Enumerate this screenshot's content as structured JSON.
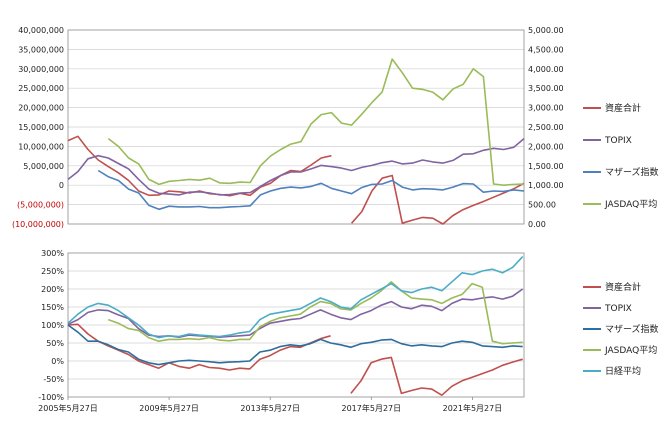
{
  "chart_data": [
    {
      "type": "line",
      "title": "",
      "xlabel": "",
      "ylabel": "",
      "x": [
        2005.41,
        2005.8,
        2006.2,
        2006.6,
        2007.0,
        2007.4,
        2007.8,
        2008.2,
        2008.6,
        2009.0,
        2009.4,
        2009.8,
        2010.2,
        2010.6,
        2011.0,
        2011.4,
        2011.8,
        2012.2,
        2012.6,
        2013.0,
        2013.4,
        2013.8,
        2014.2,
        2014.6,
        2015.0,
        2015.4,
        2015.8,
        2016.2,
        2016.6,
        2017.0,
        2017.4,
        2017.8,
        2018.2,
        2018.6,
        2019.0,
        2019.4,
        2019.8,
        2020.2,
        2020.6,
        2021.0,
        2021.4,
        2021.8,
        2022.2,
        2022.6,
        2023.0,
        2023.4
      ],
      "yaxis_left": {
        "ylim": [
          -10000000,
          40000000
        ],
        "ticks": [
          "(10,000,000)",
          "(5,000,000)",
          "0",
          "5,000,000",
          "10,000,000",
          "15,000,000",
          "20,000,000",
          "25,000,000",
          "30,000,000",
          "35,000,000",
          "40,000,000"
        ]
      },
      "yaxis_right": {
        "ylim": [
          0,
          5000
        ],
        "ticks": [
          "0.00",
          "500.00",
          "1,000.00",
          "1,500.00",
          "2,000.00",
          "2,500.00",
          "3,000.00",
          "3,500.00",
          "4,000.00",
          "4,500.00",
          "5,000.00"
        ]
      },
      "legend_position": "right",
      "series": [
        {
          "name": "資産合計",
          "axis": "left",
          "color": "#c0504d",
          "values": [
            11500000,
            12600000,
            9200000,
            6500000,
            4800000,
            3200000,
            1200000,
            -1500000,
            -2600000,
            -2500000,
            -1500000,
            -1700000,
            -2000000,
            -1500000,
            -2200000,
            -2400000,
            -2700000,
            -2100000,
            -2600000,
            -500000,
            500000,
            2500000,
            3800000,
            3500000,
            5200000,
            7000000,
            7600000,
            null,
            -9800000,
            -6800000,
            -1500000,
            1800000,
            2500000,
            -9800000,
            -9000000,
            -8300000,
            -8500000,
            -10000000,
            -7800000,
            -6300000,
            -5200000,
            -4200000,
            -3100000,
            -2000000,
            -900000,
            500000
          ]
        },
        {
          "name": "TOPIX",
          "axis": "left",
          "color": "#8064a2",
          "values": [
            1500000,
            3500000,
            6800000,
            7600000,
            7000000,
            5600000,
            4200000,
            1500000,
            -1000000,
            -2100000,
            -2300000,
            -2500000,
            -1800000,
            -1700000,
            -2000000,
            -2500000,
            -2400000,
            -2000000,
            -1900000,
            -300000,
            1200000,
            2500000,
            3400000,
            3400000,
            4200000,
            5100000,
            4800000,
            4400000,
            3800000,
            4600000,
            5100000,
            5800000,
            6200000,
            5500000,
            5700000,
            6500000,
            6000000,
            5700000,
            6400000,
            8000000,
            8100000,
            9000000,
            9500000,
            9200000,
            9800000,
            12000000
          ]
        },
        {
          "name": "マザーズ指数",
          "axis": "left",
          "color": "#4f81bd",
          "values": [
            null,
            null,
            null,
            3800000,
            2200000,
            1200000,
            -1000000,
            -2000000,
            -5200000,
            -6200000,
            -5400000,
            -5600000,
            -5600000,
            -5500000,
            -5800000,
            -5800000,
            -5600000,
            -5500000,
            -5300000,
            -2500000,
            -1500000,
            -800000,
            -500000,
            -700000,
            -300000,
            500000,
            -800000,
            -1500000,
            -2200000,
            -600000,
            200000,
            300000,
            1200000,
            -500000,
            -1200000,
            -900000,
            -1000000,
            -1200000,
            -500000,
            400000,
            300000,
            -1800000,
            -1500000,
            -1600000,
            -1200000,
            -1500000
          ]
        },
        {
          "name": "JASDAQ平均",
          "axis": "left",
          "color": "#9bbb59",
          "values": [
            null,
            null,
            null,
            null,
            12000000,
            10000000,
            7000000,
            5500000,
            1500000,
            200000,
            1000000,
            1200000,
            1500000,
            1300000,
            1800000,
            600000,
            500000,
            800000,
            700000,
            5000000,
            7500000,
            9200000,
            10600000,
            11200000,
            15800000,
            18200000,
            18700000,
            16000000,
            15500000,
            18300000,
            21300000,
            24000000,
            32500000,
            29000000,
            25000000,
            24700000,
            24000000,
            22000000,
            24800000,
            26000000,
            30000000,
            28000000,
            300000,
            0,
            200000,
            300000
          ]
        }
      ]
    },
    {
      "type": "line",
      "title": "",
      "xlabel": "",
      "ylabel": "",
      "x": [
        2005.41,
        2005.8,
        2006.2,
        2006.6,
        2007.0,
        2007.4,
        2007.8,
        2008.2,
        2008.6,
        2009.0,
        2009.4,
        2009.8,
        2010.2,
        2010.6,
        2011.0,
        2011.4,
        2011.8,
        2012.2,
        2012.6,
        2013.0,
        2013.4,
        2013.8,
        2014.2,
        2014.6,
        2015.0,
        2015.4,
        2015.8,
        2016.2,
        2016.6,
        2017.0,
        2017.4,
        2017.8,
        2018.2,
        2018.6,
        2019.0,
        2019.4,
        2019.8,
        2020.2,
        2020.6,
        2021.0,
        2021.4,
        2021.8,
        2022.2,
        2022.6,
        2023.0,
        2023.4
      ],
      "yaxis": {
        "ylim": [
          -1.0,
          3.0
        ],
        "ticks": [
          "-100%",
          "-50%",
          "0%",
          "50%",
          "100%",
          "150%",
          "200%",
          "250%",
          "300%"
        ]
      },
      "xaxis": {
        "range": [
          2005.41,
          2023.45
        ],
        "tick_positions": [
          2005.41,
          2009.41,
          2013.41,
          2017.41,
          2021.41
        ],
        "ticks": [
          "2005年5月27日",
          "2009年5月27日",
          "2013年5月27日",
          "2017年5月27日",
          "2021年5月27日"
        ]
      },
      "legend_position": "right",
      "series": [
        {
          "name": "資産合計",
          "color": "#c0504d",
          "values": [
            1.0,
            1.02,
            0.75,
            0.55,
            0.42,
            0.3,
            0.18,
            0.0,
            -0.1,
            -0.2,
            -0.05,
            -0.15,
            -0.2,
            -0.1,
            -0.18,
            -0.2,
            -0.25,
            -0.2,
            -0.22,
            0.05,
            0.15,
            0.3,
            0.4,
            0.38,
            0.5,
            0.62,
            0.7,
            null,
            -0.9,
            -0.55,
            -0.05,
            0.05,
            0.1,
            -0.9,
            -0.82,
            -0.75,
            -0.78,
            -0.95,
            -0.7,
            -0.55,
            -0.45,
            -0.35,
            -0.25,
            -0.12,
            -0.03,
            0.05
          ]
        },
        {
          "name": "TOPIX",
          "color": "#8064a2",
          "values": [
            1.02,
            1.15,
            1.35,
            1.42,
            1.4,
            1.28,
            1.18,
            0.9,
            0.72,
            0.68,
            0.7,
            0.66,
            0.72,
            0.7,
            0.68,
            0.66,
            0.68,
            0.7,
            0.72,
            0.9,
            1.05,
            1.1,
            1.15,
            1.18,
            1.3,
            1.42,
            1.3,
            1.2,
            1.15,
            1.3,
            1.4,
            1.55,
            1.65,
            1.5,
            1.45,
            1.55,
            1.52,
            1.4,
            1.6,
            1.72,
            1.7,
            1.75,
            1.78,
            1.72,
            1.8,
            2.0
          ]
        },
        {
          "name": "マザーズ指数",
          "color": "#2e6e9e",
          "values": [
            1.0,
            0.8,
            0.55,
            0.55,
            0.45,
            0.32,
            0.25,
            0.05,
            -0.05,
            -0.1,
            -0.05,
            0.0,
            0.02,
            0.0,
            -0.02,
            -0.05,
            -0.03,
            -0.02,
            0.0,
            0.25,
            0.3,
            0.4,
            0.45,
            0.42,
            0.48,
            0.6,
            0.5,
            0.45,
            0.38,
            0.48,
            0.52,
            0.58,
            0.6,
            0.48,
            0.42,
            0.45,
            0.42,
            0.4,
            0.5,
            0.55,
            0.52,
            0.42,
            0.4,
            0.38,
            0.42,
            0.4
          ]
        },
        {
          "name": "JASDAQ平均",
          "color": "#9bbb59",
          "values": [
            null,
            null,
            null,
            null,
            1.15,
            1.05,
            0.9,
            0.85,
            0.65,
            0.55,
            0.6,
            0.6,
            0.62,
            0.6,
            0.65,
            0.58,
            0.56,
            0.6,
            0.6,
            0.95,
            1.1,
            1.2,
            1.25,
            1.3,
            1.5,
            1.65,
            1.6,
            1.45,
            1.42,
            1.6,
            1.75,
            1.95,
            2.2,
            1.95,
            1.75,
            1.72,
            1.7,
            1.6,
            1.75,
            1.85,
            2.15,
            2.05,
            0.55,
            0.48,
            0.5,
            0.52
          ]
        },
        {
          "name": "日経平均",
          "color": "#4bacc6",
          "values": [
            1.05,
            1.3,
            1.5,
            1.6,
            1.55,
            1.4,
            1.2,
            1.0,
            0.75,
            0.65,
            0.7,
            0.68,
            0.75,
            0.72,
            0.7,
            0.68,
            0.72,
            0.78,
            0.82,
            1.15,
            1.3,
            1.35,
            1.4,
            1.45,
            1.6,
            1.75,
            1.65,
            1.5,
            1.45,
            1.7,
            1.85,
            2.0,
            2.15,
            1.95,
            1.9,
            2.0,
            2.05,
            1.95,
            2.2,
            2.45,
            2.4,
            2.5,
            2.55,
            2.45,
            2.6,
            2.9
          ]
        }
      ]
    }
  ]
}
